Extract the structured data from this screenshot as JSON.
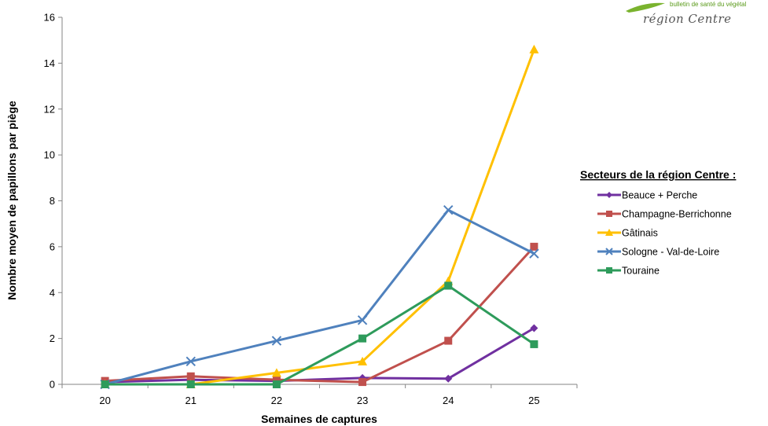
{
  "logo": {
    "line1": "bulletin de santé du végétal",
    "line2": "région Centre"
  },
  "chart_data": {
    "type": "line",
    "title": "",
    "xlabel": "Semaines de captures",
    "ylabel": "Nombre moyen de papillons par piège",
    "categories": [
      "20",
      "21",
      "22",
      "23",
      "24",
      "25"
    ],
    "ylim": [
      0,
      16
    ],
    "yticks": [
      "0",
      "2",
      "4",
      "6",
      "8",
      "10",
      "12",
      "14",
      "16"
    ],
    "grid": false,
    "legend_title": "Secteurs de la région Centre :",
    "legend_position": "right",
    "series": [
      {
        "name": "Beauce + Perche",
        "color": "#7030a0",
        "marker": "diamond",
        "values": [
          0.1,
          0.2,
          0.15,
          0.28,
          0.25,
          2.45
        ]
      },
      {
        "name": "Champagne-Berrichonne",
        "color": "#c0504d",
        "marker": "square",
        "values": [
          0.15,
          0.35,
          0.2,
          0.1,
          1.9,
          6.0
        ]
      },
      {
        "name": "Gâtinais",
        "color": "#ffc000",
        "marker": "triangle",
        "values": [
          0.0,
          0.0,
          0.5,
          1.0,
          4.5,
          14.6
        ]
      },
      {
        "name": "Sologne - Val-de-Loire",
        "color": "#4f81bd",
        "marker": "x",
        "values": [
          0.0,
          1.0,
          1.9,
          2.8,
          7.6,
          5.7
        ]
      },
      {
        "name": "Touraine",
        "color": "#2e9b5b",
        "marker": "square",
        "values": [
          0.0,
          0.0,
          0.0,
          2.0,
          4.3,
          1.75
        ]
      }
    ]
  }
}
